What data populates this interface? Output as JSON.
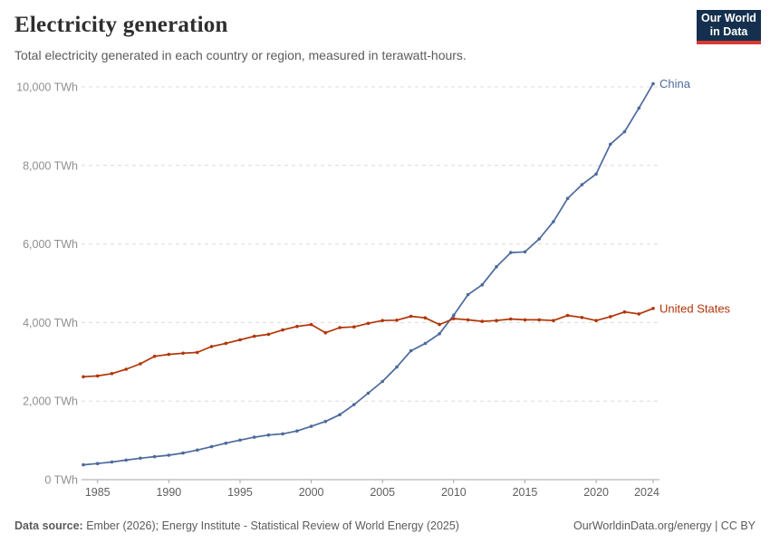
{
  "header": {
    "title": "Electricity generation",
    "subtitle": "Total electricity generated in each country or region, measured in terawatt-hours."
  },
  "logo": {
    "line1": "Our World",
    "line2": "in Data",
    "bg_color": "#15304E",
    "accent_color": "#D63A33"
  },
  "chart_data": {
    "type": "line",
    "title": "Electricity generation",
    "xlabel": "",
    "ylabel": "TWh",
    "x_range": [
      1984,
      2024
    ],
    "y_range": [
      0,
      10000
    ],
    "grid": true,
    "legend_position": "end-of-line-labels",
    "x": [
      1984,
      1985,
      1986,
      1987,
      1988,
      1989,
      1990,
      1991,
      1992,
      1993,
      1994,
      1995,
      1996,
      1997,
      1998,
      1999,
      2000,
      2001,
      2002,
      2003,
      2004,
      2005,
      2006,
      2007,
      2008,
      2009,
      2010,
      2011,
      2012,
      2013,
      2014,
      2015,
      2016,
      2017,
      2018,
      2019,
      2020,
      2021,
      2022,
      2023,
      2024
    ],
    "series": [
      {
        "name": "China",
        "color": "#4C6A9C",
        "values": [
          377,
          411,
          450,
          497,
          545,
          585,
          621,
          678,
          754,
          839,
          928,
          1007,
          1081,
          1136,
          1167,
          1239,
          1356,
          1481,
          1654,
          1911,
          2203,
          2500,
          2866,
          3282,
          3467,
          3715,
          4190,
          4710,
          4960,
          5420,
          5780,
          5800,
          6130,
          6570,
          7160,
          7510,
          7780,
          8540,
          8860,
          9460,
          10080
        ]
      },
      {
        "name": "United States",
        "color": "#B13507",
        "values": [
          2620,
          2640,
          2700,
          2810,
          2950,
          3140,
          3190,
          3220,
          3240,
          3390,
          3470,
          3560,
          3650,
          3700,
          3810,
          3900,
          3950,
          3740,
          3870,
          3890,
          3980,
          4050,
          4060,
          4160,
          4120,
          3950,
          4100,
          4070,
          4030,
          4050,
          4090,
          4070,
          4070,
          4050,
          4180,
          4130,
          4050,
          4150,
          4270,
          4220,
          4360
        ]
      }
    ],
    "x_ticks": [
      1985,
      1990,
      1995,
      2000,
      2005,
      2010,
      2015,
      2020,
      2024
    ],
    "y_ticks": [
      0,
      2000,
      4000,
      6000,
      8000,
      10000
    ],
    "y_tick_labels": [
      "0 TWh",
      "2,000 TWh",
      "4,000 TWh",
      "6,000 TWh",
      "8,000 TWh",
      "10,000 TWh"
    ]
  },
  "footer": {
    "source_label": "Data source:",
    "source_text": " Ember (2026); Energy Institute - Statistical Review of World Energy (2025)",
    "right_text": "OurWorldinData.org/energy | CC BY"
  }
}
